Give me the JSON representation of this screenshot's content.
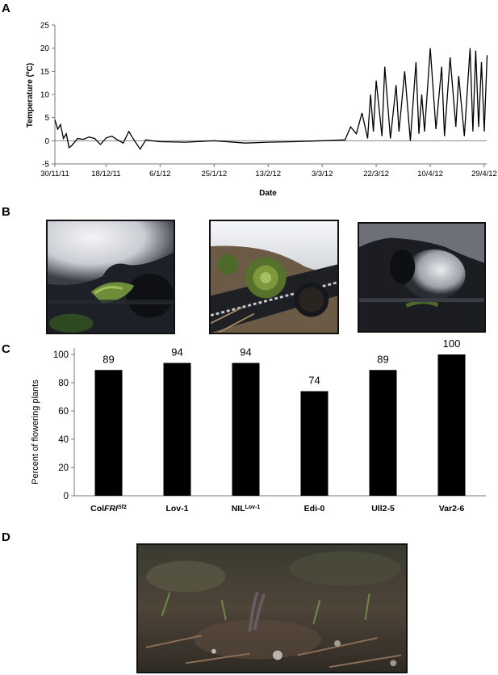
{
  "panels": {
    "a": "A",
    "b": "B",
    "c": "C",
    "d": "D"
  },
  "chart_data": [
    {
      "type": "line",
      "xlabel": "Date",
      "ylabel": "Temperature (ºC)",
      "ylim": [
        -5,
        25
      ],
      "yticks": [
        "-5",
        "0",
        "5",
        "10",
        "15",
        "20",
        "25"
      ],
      "xticks": [
        "30/11/11",
        "18/12/11",
        "6/1/12",
        "25/1/12",
        "13/2/12",
        "3/3/12",
        "22/3/12",
        "10/4/12",
        "29/4/12"
      ],
      "xtick_dates": [
        "2011-11-30",
        "2011-12-18",
        "2012-01-06",
        "2012-01-25",
        "2012-02-13",
        "2012-03-03",
        "2012-03-22",
        "2012-04-10",
        "2012-04-29"
      ],
      "grid": false,
      "series": [
        {
          "x": [
            "2011-11-30",
            "2011-12-01",
            "2011-12-02",
            "2011-12-03",
            "2011-12-04",
            "2011-12-05",
            "2011-12-06",
            "2011-12-08",
            "2011-12-10",
            "2011-12-12",
            "2011-12-14",
            "2011-12-16",
            "2011-12-18",
            "2011-12-20",
            "2011-12-22",
            "2011-12-24",
            "2011-12-26",
            "2011-12-28",
            "2011-12-30",
            "2012-01-01",
            "2012-01-03",
            "2012-01-06",
            "2012-01-15",
            "2012-01-25",
            "2012-02-05",
            "2012-02-13",
            "2012-02-22",
            "2012-03-03",
            "2012-03-11",
            "2012-03-13",
            "2012-03-15",
            "2012-03-17",
            "2012-03-19",
            "2012-03-20",
            "2012-03-21",
            "2012-03-22",
            "2012-03-24",
            "2012-03-25",
            "2012-03-27",
            "2012-03-29",
            "2012-03-30",
            "2012-04-01",
            "2012-04-03",
            "2012-04-05",
            "2012-04-06",
            "2012-04-07",
            "2012-04-08",
            "2012-04-10",
            "2012-04-12",
            "2012-04-14",
            "2012-04-15",
            "2012-04-17",
            "2012-04-19",
            "2012-04-20",
            "2012-04-22",
            "2012-04-24",
            "2012-04-25",
            "2012-04-26",
            "2012-04-27",
            "2012-04-28",
            "2012-04-29",
            "2012-04-30"
          ],
          "values": [
            4.5,
            2.5,
            3.5,
            0.5,
            1.5,
            -1.5,
            -1.0,
            0.5,
            0.3,
            0.8,
            0.5,
            -0.8,
            0.6,
            1.0,
            0.2,
            -0.5,
            2.0,
            0.0,
            -1.8,
            0.2,
            0.0,
            -0.2,
            -0.3,
            0.0,
            -0.5,
            -0.3,
            -0.2,
            0.0,
            0.2,
            3.0,
            1.5,
            6.0,
            0.5,
            10.0,
            2.0,
            13.0,
            1.0,
            16.0,
            0.5,
            12.0,
            2.0,
            15.0,
            0.0,
            17.0,
            1.5,
            10.0,
            2.0,
            20.0,
            2.5,
            16.0,
            1.0,
            18.0,
            3.0,
            14.0,
            1.0,
            20.0,
            2.0,
            19.5,
            3.0,
            17.0,
            2.0,
            18.5
          ]
        }
      ]
    },
    {
      "type": "bar",
      "ylabel": "Percent of flowering plants",
      "ylim": [
        0,
        100
      ],
      "yticks": [
        "0",
        "20",
        "40",
        "60",
        "80",
        "100"
      ],
      "categories": [
        "Col",
        "Lov-1",
        "NIL",
        "Edi-0",
        "Ull2-5",
        "Var2-6"
      ],
      "category_parts": {
        "col_italic": "FRI",
        "col_sup": "Sf2",
        "nil_sup": "Lov-1"
      },
      "values": [
        89,
        94,
        94,
        74,
        89,
        100
      ],
      "data_labels": [
        "89",
        "94",
        "94",
        "74",
        "89",
        "100"
      ],
      "grid": false
    }
  ],
  "colors": {
    "line": "#000000",
    "bar": "#000000",
    "axis": "#777777",
    "photo_border": "#111111"
  },
  "photos": [
    {
      "name": "snow-covered-seedling-photo-1"
    },
    {
      "name": "rosette-under-snow-edge-photo-2"
    },
    {
      "name": "snow-covered-seedling-photo-3"
    },
    {
      "name": "field-plants-ground-photo"
    }
  ]
}
